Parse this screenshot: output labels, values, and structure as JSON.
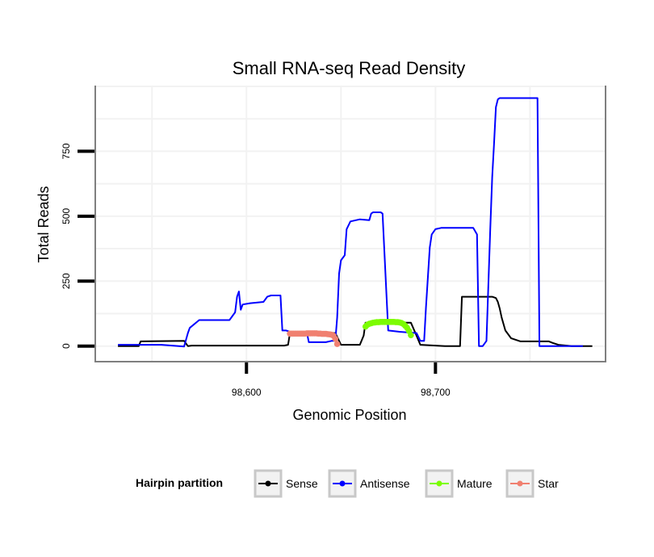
{
  "chart_data": {
    "type": "line",
    "title": "Small RNA-seq Read Density",
    "xlabel": "Genomic Position",
    "ylabel": "Total Reads",
    "xlim": [
      98520,
      98790
    ],
    "ylim": [
      -60,
      1000
    ],
    "x_ticks": [
      98600,
      98700
    ],
    "x_tick_labels": [
      "98,600",
      "98,700"
    ],
    "y_ticks": [
      0,
      250,
      500,
      750
    ],
    "y_tick_labels": [
      "0",
      "250",
      "500",
      "750"
    ],
    "grid": true,
    "legend": {
      "position": "bottom",
      "title": "Hairpin partition",
      "entries": [
        "Sense",
        "Antisense",
        "Mature",
        "Star"
      ]
    },
    "series": [
      {
        "name": "Sense",
        "color": "#000000",
        "style": "line",
        "x": [
          98532,
          98543,
          98544,
          98567,
          98569,
          98571,
          98620,
          98622,
          98623,
          98647,
          98650,
          98660,
          98662,
          98663,
          98687,
          98690,
          98692,
          98705,
          98707,
          98713,
          98714,
          98730,
          98732,
          98733,
          98734,
          98735,
          98737,
          98740,
          98745,
          98752,
          98760,
          98762,
          98765,
          98772,
          98783
        ],
        "y": [
          0,
          0,
          18,
          20,
          0,
          2,
          2,
          5,
          50,
          50,
          5,
          5,
          40,
          90,
          90,
          40,
          5,
          0,
          0,
          0,
          190,
          190,
          185,
          170,
          145,
          110,
          60,
          30,
          18,
          18,
          18,
          12,
          5,
          0,
          0
        ]
      },
      {
        "name": "Antisense",
        "color": "#0000ff",
        "style": "line",
        "x": [
          98532,
          98555,
          98567,
          98569,
          98570,
          98575,
          98591,
          98594,
          98595,
          98596,
          98597,
          98598,
          98602,
          98609,
          98611,
          98613,
          98618,
          98619,
          98621,
          98623,
          98632,
          98633,
          98642,
          98645,
          98647,
          98648,
          98649,
          98650,
          98652,
          98653,
          98655,
          98660,
          98665,
          98666,
          98667,
          98671,
          98672,
          98675,
          98681,
          98690,
          98692,
          98694,
          98695,
          98697,
          98698,
          98700,
          98703,
          98720,
          98722,
          98723,
          98725,
          98727,
          98729,
          98730,
          98731,
          98732,
          98733,
          98734,
          98736,
          98747,
          98753,
          98754,
          98755,
          98778
        ],
        "y": [
          5,
          5,
          -2,
          50,
          70,
          100,
          100,
          130,
          190,
          210,
          140,
          160,
          165,
          170,
          190,
          195,
          195,
          60,
          60,
          55,
          50,
          15,
          15,
          20,
          20,
          110,
          280,
          330,
          350,
          450,
          480,
          488,
          485,
          510,
          515,
          515,
          510,
          60,
          55,
          50,
          20,
          20,
          150,
          380,
          430,
          450,
          455,
          455,
          430,
          0,
          0,
          20,
          450,
          650,
          780,
          920,
          950,
          955,
          955,
          955,
          955,
          955,
          0,
          0
        ]
      },
      {
        "name": "Mature",
        "color": "#7cfc00",
        "style": "dots",
        "x": [
          98663,
          98664,
          98665,
          98666,
          98667,
          98668,
          98669,
          98670,
          98671,
          98672,
          98673,
          98674,
          98675,
          98676,
          98677,
          98678,
          98679,
          98680,
          98681,
          98682,
          98683,
          98684,
          98685,
          98686,
          98687
        ],
        "y": [
          75,
          82,
          86,
          88,
          90,
          91,
          92,
          92,
          93,
          93,
          93,
          93,
          93,
          93,
          93,
          93,
          92,
          92,
          91,
          89,
          85,
          78,
          70,
          58,
          42
        ]
      },
      {
        "name": "Star",
        "color": "#f08070",
        "style": "dots",
        "x": [
          98623,
          98624,
          98625,
          98626,
          98627,
          98628,
          98629,
          98630,
          98631,
          98632,
          98633,
          98634,
          98635,
          98636,
          98637,
          98638,
          98639,
          98640,
          98641,
          98642,
          98643,
          98644,
          98645,
          98646,
          98647,
          98648
        ],
        "y": [
          48,
          48,
          48,
          48,
          48,
          48,
          48,
          48,
          48,
          49,
          49,
          49,
          49,
          49,
          49,
          48,
          48,
          47,
          47,
          47,
          46,
          45,
          44,
          40,
          28,
          8
        ]
      }
    ]
  }
}
